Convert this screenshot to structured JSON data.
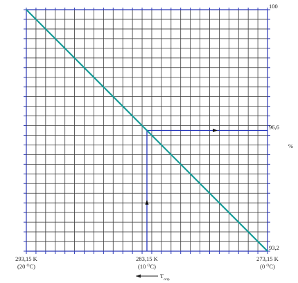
{
  "chart_data": {
    "type": "line",
    "x_ticks": [
      {
        "value": 293.15,
        "kelvin": "293,15 K",
        "celsius": "(20 ",
        "celsius_sup": "O",
        "celsius_tail": "C)"
      },
      {
        "value": 283.15,
        "kelvin": "283,15 K",
        "celsius": "(10 ",
        "celsius_sup": "O",
        "celsius_tail": "C)"
      },
      {
        "value": 273.15,
        "kelvin": "273,15 K",
        "celsius": "(0 ",
        "celsius_sup": "O",
        "celsius_tail": "C)"
      }
    ],
    "xlim": [
      293.15,
      273.15
    ],
    "ylim": [
      93.2,
      100
    ],
    "y_ticks": [
      {
        "value": 100,
        "label": "100"
      },
      {
        "value": 96.6,
        "label": "96,6"
      },
      {
        "value": 93.2,
        "label": "93,2"
      }
    ],
    "ylabel": "%",
    "xlabel_main": "T",
    "xlabel_sub": "опр",
    "series": [
      {
        "x": [
          293.15,
          273.15
        ],
        "y": [
          100,
          93.2
        ],
        "color": "#159a96"
      }
    ],
    "guide": {
      "x": 283.15,
      "y": 96.6,
      "color": "#2233bb"
    },
    "grid": true,
    "grid_color": "#2b37b8",
    "xlabel_arrow": "left"
  }
}
